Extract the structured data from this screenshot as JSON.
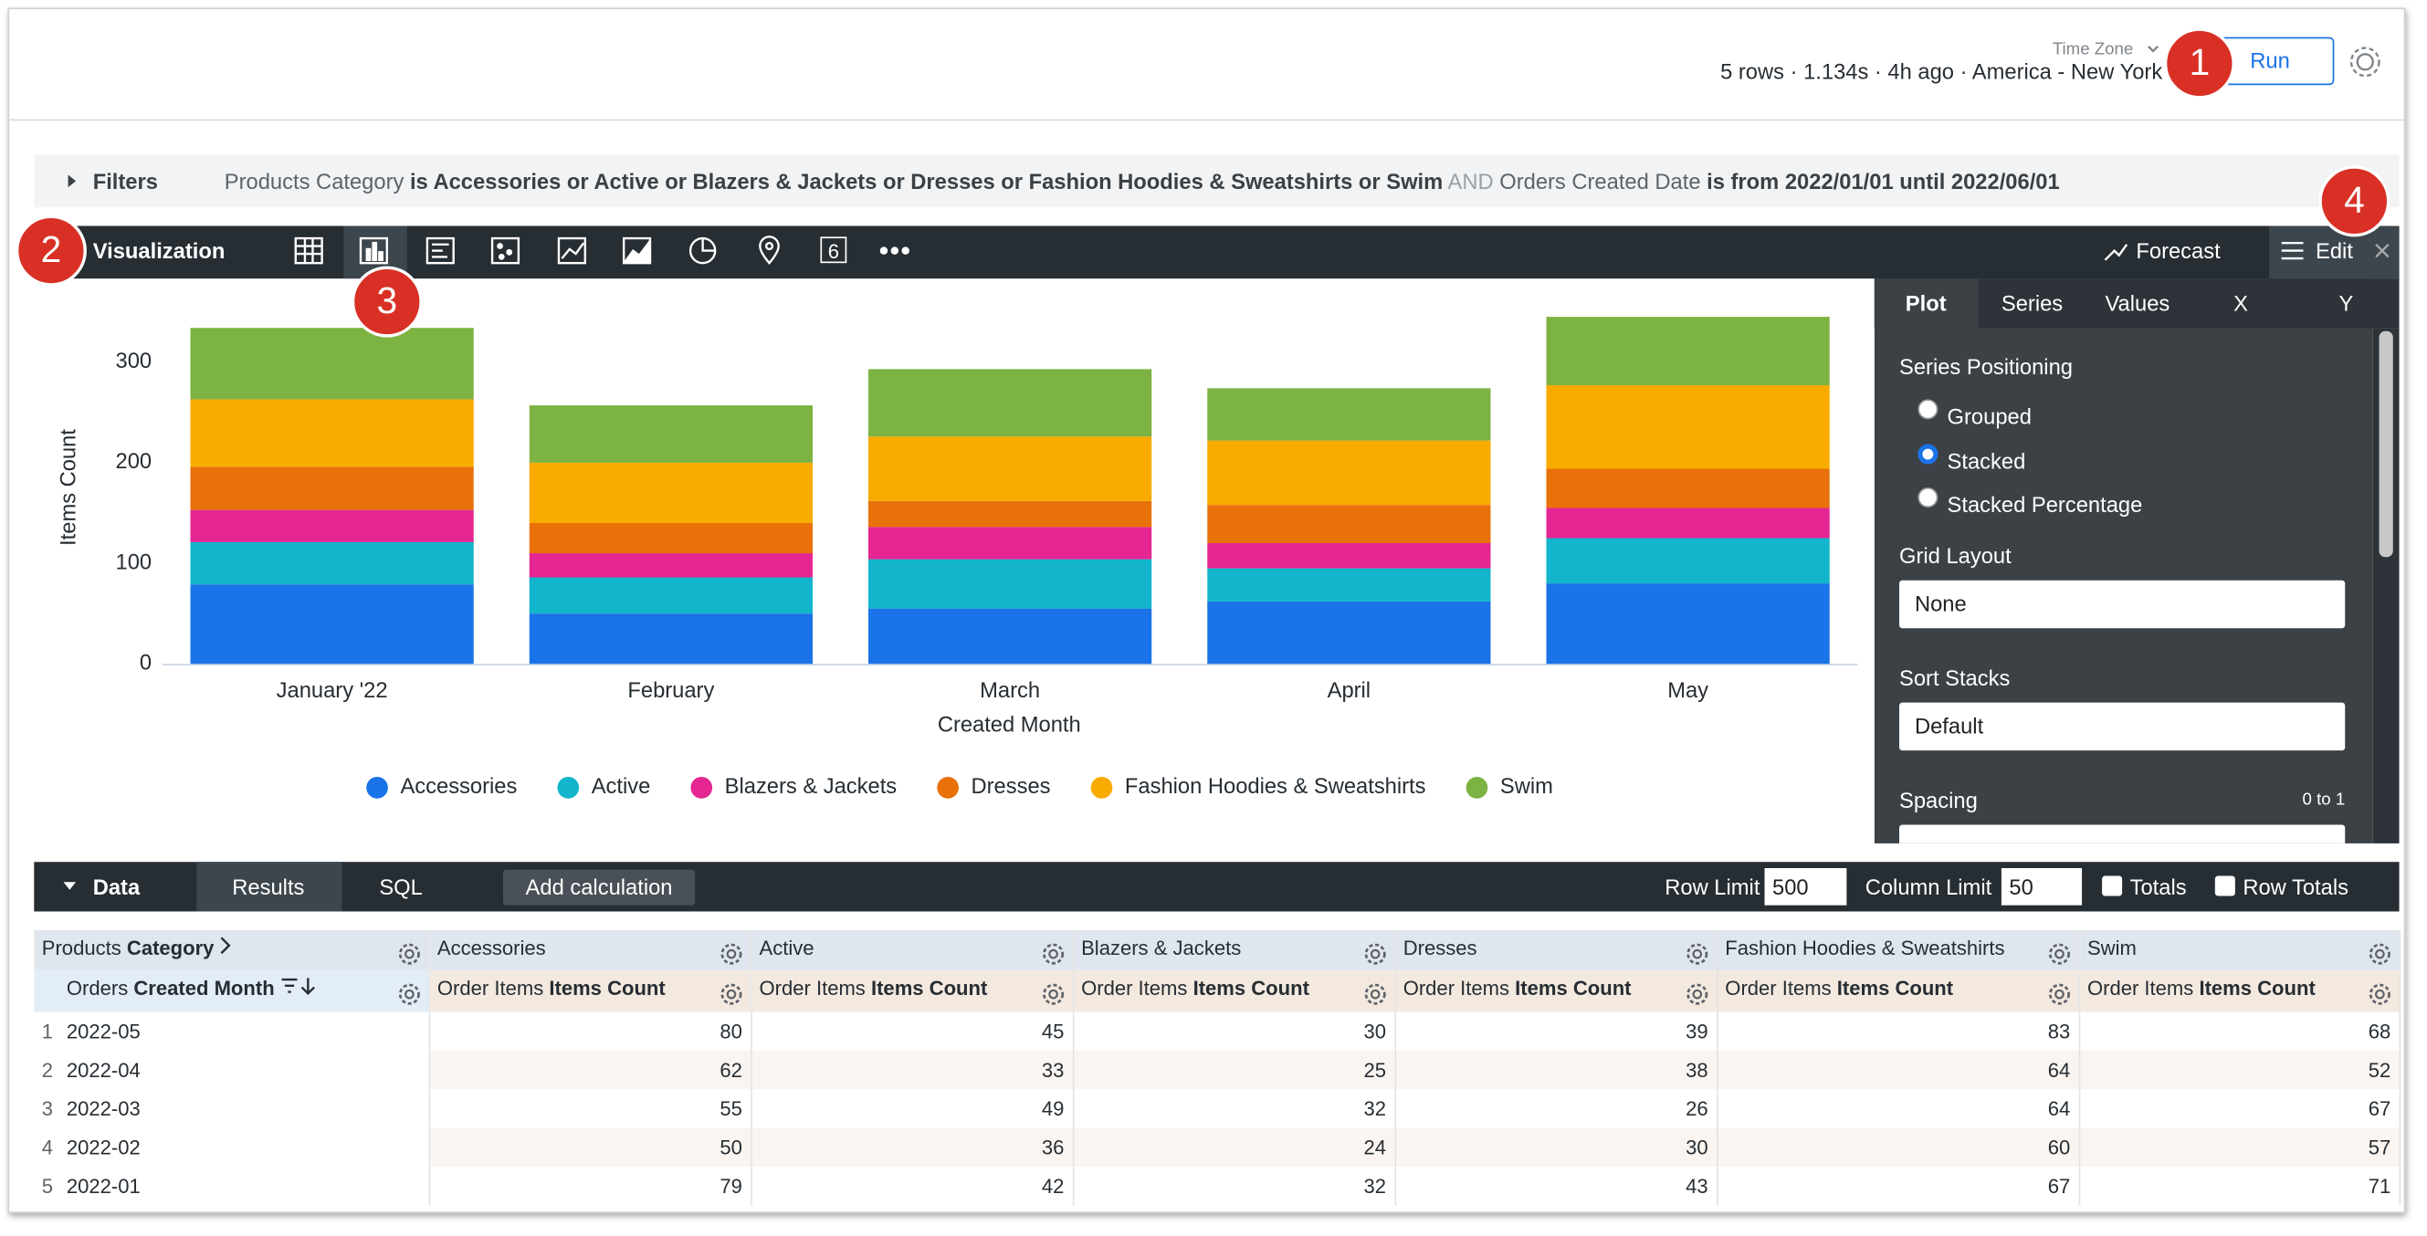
{
  "top_bar": {
    "time_zone_label": "Time Zone",
    "status": "5 rows · 1.134s · 4h ago · America - New York",
    "run_button": "Run"
  },
  "callouts": [
    "1",
    "2",
    "3",
    "4"
  ],
  "filters": {
    "label": "Filters",
    "parts": [
      "Products Category",
      "is Accessories or Active or Blazers & Jackets or Dresses or Fashion Hoodies & Sweatshirts or Swim",
      "AND",
      "Orders Created Date",
      "is from 2022/01/01 until 2022/06/01"
    ]
  },
  "visualization_bar": {
    "label": "Visualization",
    "single_value_icon": "6",
    "forecast": "Forecast",
    "edit": "Edit"
  },
  "edit_panel": {
    "tabs": [
      "Plot",
      "Series",
      "Values",
      "X",
      "Y"
    ],
    "series_positioning": {
      "label": "Series Positioning",
      "options": [
        "Grouped",
        "Stacked",
        "Stacked Percentage"
      ],
      "selected": "Stacked"
    },
    "grid_layout": {
      "label": "Grid Layout",
      "value": "None"
    },
    "sort_stacks": {
      "label": "Sort Stacks",
      "value": "Default"
    },
    "spacing": {
      "label": "Spacing",
      "range": "0 to 1"
    }
  },
  "chart_data": {
    "type": "bar",
    "stacked": true,
    "x_label": "Created Month",
    "y_label": "Items Count",
    "categories": [
      "January '22",
      "February",
      "March",
      "April",
      "May"
    ],
    "series": [
      {
        "name": "Accessories",
        "color": "#1a73e8",
        "values": [
          79,
          50,
          55,
          62,
          80
        ]
      },
      {
        "name": "Active",
        "color": "#12b5cb",
        "values": [
          42,
          36,
          49,
          33,
          45
        ]
      },
      {
        "name": "Blazers & Jackets",
        "color": "#e52592",
        "values": [
          32,
          24,
          32,
          25,
          30
        ]
      },
      {
        "name": "Dresses",
        "color": "#e8710a",
        "values": [
          43,
          30,
          26,
          38,
          39
        ]
      },
      {
        "name": "Fashion Hoodies & Sweatshirts",
        "color": "#f9ab00",
        "values": [
          67,
          60,
          64,
          64,
          83
        ]
      },
      {
        "name": "Swim",
        "color": "#7cb342",
        "values": [
          71,
          57,
          67,
          52,
          68
        ]
      }
    ],
    "ylim": [
      0,
      360
    ],
    "yticks": [
      0,
      100,
      200,
      300
    ],
    "grid": false,
    "legend": "bottom"
  },
  "data_bar": {
    "label": "Data",
    "tabs": [
      "Results",
      "SQL"
    ],
    "add_calculation": "Add calculation",
    "row_limit_label": "Row Limit",
    "row_limit": "500",
    "column_limit_label": "Column Limit",
    "column_limit": "50",
    "totals": "Totals",
    "row_totals": "Row Totals"
  },
  "table": {
    "pivot_header": {
      "view": "Products",
      "field": "Category"
    },
    "pivot_values": [
      "Accessories",
      "Active",
      "Blazers & Jackets",
      "Dresses",
      "Fashion Hoodies & Sweatshirts",
      "Swim"
    ],
    "dimension_header": {
      "view": "Orders",
      "field": "Created Month"
    },
    "measure_header": {
      "view": "Order Items",
      "field": "Items Count"
    },
    "row_numbers": [
      "1",
      "2",
      "3",
      "4",
      "5"
    ],
    "rows": [
      [
        "2022-05",
        "80",
        "45",
        "30",
        "39",
        "83",
        "68"
      ],
      [
        "2022-04",
        "62",
        "33",
        "25",
        "38",
        "64",
        "52"
      ],
      [
        "2022-03",
        "55",
        "49",
        "32",
        "26",
        "64",
        "67"
      ],
      [
        "2022-02",
        "50",
        "36",
        "24",
        "30",
        "60",
        "57"
      ],
      [
        "2022-01",
        "79",
        "42",
        "32",
        "43",
        "67",
        "71"
      ]
    ]
  }
}
